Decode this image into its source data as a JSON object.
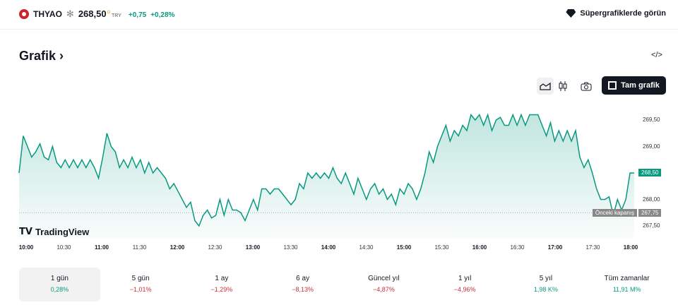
{
  "header": {
    "symbol": "THYAO",
    "price": "268,50",
    "currency": "TRY",
    "change": "+0,75",
    "change_pct": "+0,28%",
    "super_label": "Süpergrafiklerde görün"
  },
  "title": "Grafik ›",
  "embed": "</>",
  "toolbar": {
    "full_chart": "Tam grafik"
  },
  "chart_data": {
    "type": "area",
    "color": "#089981",
    "ylim": [
      267.3,
      269.75
    ],
    "y_ticks": [
      "269,50",
      "269,00",
      "268,00",
      "267,50"
    ],
    "current_price": "268,50",
    "prev_close_label": "Önceki kapanış",
    "prev_close": "267,75",
    "prev_close_value": 267.75,
    "x_ticks": [
      {
        "t": "10:00",
        "b": true
      },
      {
        "t": "10:30"
      },
      {
        "t": "11:00",
        "b": true
      },
      {
        "t": "11:30"
      },
      {
        "t": "12:00",
        "b": true
      },
      {
        "t": "12:30"
      },
      {
        "t": "13:00",
        "b": true
      },
      {
        "t": "13:30"
      },
      {
        "t": "14:00",
        "b": true
      },
      {
        "t": "14:30"
      },
      {
        "t": "15:00",
        "b": true
      },
      {
        "t": "15:30"
      },
      {
        "t": "16:00",
        "b": true
      },
      {
        "t": "16:30"
      },
      {
        "t": "17:00",
        "b": true
      },
      {
        "t": "17:30"
      },
      {
        "t": "18:00",
        "b": true
      }
    ],
    "values": [
      268.5,
      269.2,
      269.0,
      268.8,
      268.9,
      269.05,
      268.8,
      268.75,
      269.0,
      268.7,
      268.6,
      268.75,
      268.6,
      268.75,
      268.6,
      268.75,
      268.6,
      268.75,
      268.6,
      268.4,
      268.8,
      269.25,
      269.0,
      268.9,
      268.6,
      268.75,
      268.6,
      268.8,
      268.6,
      268.75,
      268.5,
      268.7,
      268.5,
      268.6,
      268.5,
      268.4,
      268.2,
      268.3,
      268.15,
      268.0,
      267.85,
      267.95,
      267.6,
      267.5,
      267.7,
      267.8,
      267.65,
      267.7,
      268.0,
      267.7,
      268.0,
      267.8,
      267.8,
      267.75,
      267.6,
      267.8,
      268.0,
      267.8,
      268.2,
      268.2,
      268.1,
      268.2,
      268.2,
      268.1,
      268.0,
      267.9,
      268.0,
      268.3,
      268.2,
      268.5,
      268.4,
      268.5,
      268.4,
      268.5,
      268.4,
      268.6,
      268.4,
      268.3,
      268.5,
      268.3,
      268.1,
      268.4,
      268.2,
      268.0,
      268.2,
      268.3,
      268.1,
      268.2,
      268.0,
      268.1,
      267.9,
      268.2,
      268.1,
      268.3,
      268.2,
      268.0,
      268.2,
      268.5,
      268.9,
      268.7,
      269.0,
      269.2,
      269.4,
      269.1,
      269.3,
      269.2,
      269.4,
      269.3,
      269.6,
      269.5,
      269.6,
      269.4,
      269.6,
      269.3,
      269.5,
      269.55,
      269.4,
      269.4,
      269.6,
      269.4,
      269.6,
      269.4,
      269.6,
      269.6,
      269.6,
      269.4,
      269.2,
      269.45,
      269.1,
      269.3,
      269.1,
      269.3,
      269.1,
      269.3,
      268.8,
      268.6,
      268.75,
      268.5,
      268.2,
      268.0,
      268.0,
      268.05,
      267.7,
      268.0,
      267.8,
      268.0,
      268.5,
      268.5
    ]
  },
  "branding": "TradingView",
  "periods": [
    {
      "label": "1 gün",
      "value": "0,28%",
      "dir": "pos"
    },
    {
      "label": "5 gün",
      "value": "−1,01%",
      "dir": "neg"
    },
    {
      "label": "1 ay",
      "value": "−1,29%",
      "dir": "neg"
    },
    {
      "label": "6 ay",
      "value": "−8,13%",
      "dir": "neg"
    },
    {
      "label": "Güncel yıl",
      "value": "−4,87%",
      "dir": "neg"
    },
    {
      "label": "1 yıl",
      "value": "−4,96%",
      "dir": "neg"
    },
    {
      "label": "5 yıl",
      "value": "1,98 K%",
      "dir": "pos"
    },
    {
      "label": "Tüm zamanlar",
      "value": "11,91 M%",
      "dir": "pos"
    }
  ]
}
